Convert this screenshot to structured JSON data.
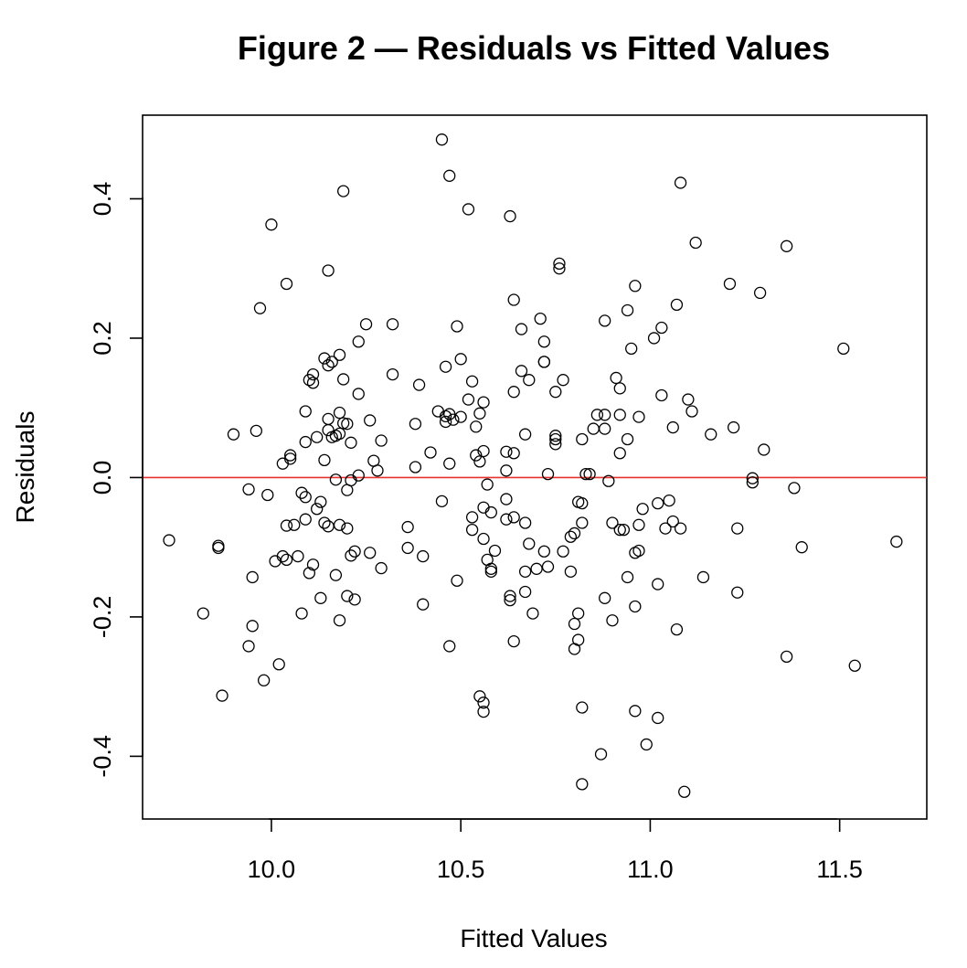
{
  "chart_data": {
    "type": "scatter",
    "title": "Figure 2 — Residuals vs Fitted Values",
    "xlabel": "Fitted Values",
    "ylabel": "Residuals",
    "xlim": [
      9.66,
      11.73
    ],
    "ylim": [
      -0.49,
      0.52
    ],
    "x_ticks": [
      10.0,
      10.5,
      11.0,
      11.5
    ],
    "x_tick_labels": [
      "10.0",
      "10.5",
      "11.0",
      "11.5"
    ],
    "y_ticks": [
      -0.4,
      -0.2,
      0.0,
      0.2,
      0.4
    ],
    "y_tick_labels": [
      "-0.4",
      "-0.2",
      "0.0",
      "0.2",
      "0.4"
    ],
    "grid": false,
    "legend": "none",
    "reference_line": {
      "y": 0.0,
      "color": "#e8312a"
    },
    "point_style": {
      "shape": "open-circle",
      "color": "#000000"
    },
    "points": [
      {
        "x": 9.73,
        "y": -0.09
      },
      {
        "x": 9.82,
        "y": -0.195
      },
      {
        "x": 9.86,
        "y": -0.098
      },
      {
        "x": 9.86,
        "y": -0.101
      },
      {
        "x": 9.87,
        "y": -0.313
      },
      {
        "x": 9.9,
        "y": 0.062
      },
      {
        "x": 9.94,
        "y": -0.017
      },
      {
        "x": 9.94,
        "y": -0.242
      },
      {
        "x": 9.95,
        "y": -0.143
      },
      {
        "x": 9.95,
        "y": -0.213
      },
      {
        "x": 9.96,
        "y": 0.067
      },
      {
        "x": 9.97,
        "y": 0.243
      },
      {
        "x": 9.98,
        "y": -0.291
      },
      {
        "x": 9.99,
        "y": -0.025
      },
      {
        "x": 10.0,
        "y": 0.363
      },
      {
        "x": 10.01,
        "y": -0.12
      },
      {
        "x": 10.02,
        "y": -0.268
      },
      {
        "x": 10.03,
        "y": 0.02
      },
      {
        "x": 10.03,
        "y": -0.113
      },
      {
        "x": 10.04,
        "y": 0.278
      },
      {
        "x": 10.04,
        "y": -0.069
      },
      {
        "x": 10.04,
        "y": -0.118
      },
      {
        "x": 10.05,
        "y": 0.032
      },
      {
        "x": 10.05,
        "y": 0.027
      },
      {
        "x": 10.06,
        "y": -0.068
      },
      {
        "x": 10.07,
        "y": -0.113
      },
      {
        "x": 10.08,
        "y": -0.022
      },
      {
        "x": 10.08,
        "y": -0.195
      },
      {
        "x": 10.09,
        "y": -0.028
      },
      {
        "x": 10.09,
        "y": 0.051
      },
      {
        "x": 10.09,
        "y": 0.095
      },
      {
        "x": 10.09,
        "y": -0.06
      },
      {
        "x": 10.1,
        "y": 0.14
      },
      {
        "x": 10.1,
        "y": -0.137
      },
      {
        "x": 10.11,
        "y": 0.148
      },
      {
        "x": 10.11,
        "y": 0.136
      },
      {
        "x": 10.11,
        "y": -0.125
      },
      {
        "x": 10.12,
        "y": 0.058
      },
      {
        "x": 10.12,
        "y": -0.045
      },
      {
        "x": 10.13,
        "y": -0.035
      },
      {
        "x": 10.13,
        "y": -0.173
      },
      {
        "x": 10.14,
        "y": 0.025
      },
      {
        "x": 10.14,
        "y": -0.065
      },
      {
        "x": 10.14,
        "y": 0.171
      },
      {
        "x": 10.15,
        "y": 0.161
      },
      {
        "x": 10.15,
        "y": 0.297
      },
      {
        "x": 10.15,
        "y": -0.07
      },
      {
        "x": 10.15,
        "y": 0.084
      },
      {
        "x": 10.15,
        "y": 0.068
      },
      {
        "x": 10.16,
        "y": 0.058
      },
      {
        "x": 10.16,
        "y": 0.166
      },
      {
        "x": 10.17,
        "y": 0.06
      },
      {
        "x": 10.17,
        "y": -0.003
      },
      {
        "x": 10.17,
        "y": -0.14
      },
      {
        "x": 10.18,
        "y": 0.093
      },
      {
        "x": 10.18,
        "y": 0.063
      },
      {
        "x": 10.18,
        "y": 0.176
      },
      {
        "x": 10.18,
        "y": -0.205
      },
      {
        "x": 10.18,
        "y": -0.068
      },
      {
        "x": 10.19,
        "y": 0.411
      },
      {
        "x": 10.19,
        "y": 0.141
      },
      {
        "x": 10.19,
        "y": 0.078
      },
      {
        "x": 10.2,
        "y": -0.018
      },
      {
        "x": 10.2,
        "y": -0.17
      },
      {
        "x": 10.2,
        "y": 0.077
      },
      {
        "x": 10.2,
        "y": -0.073
      },
      {
        "x": 10.21,
        "y": 0.05
      },
      {
        "x": 10.21,
        "y": -0.112
      },
      {
        "x": 10.21,
        "y": -0.004
      },
      {
        "x": 10.22,
        "y": -0.106
      },
      {
        "x": 10.22,
        "y": -0.175
      },
      {
        "x": 10.23,
        "y": 0.195
      },
      {
        "x": 10.23,
        "y": 0.003
      },
      {
        "x": 10.23,
        "y": 0.12
      },
      {
        "x": 10.25,
        "y": 0.22
      },
      {
        "x": 10.26,
        "y": 0.082
      },
      {
        "x": 10.26,
        "y": -0.108
      },
      {
        "x": 10.27,
        "y": 0.024
      },
      {
        "x": 10.28,
        "y": 0.01
      },
      {
        "x": 10.29,
        "y": 0.053
      },
      {
        "x": 10.29,
        "y": -0.13
      },
      {
        "x": 10.32,
        "y": 0.148
      },
      {
        "x": 10.32,
        "y": 0.22
      },
      {
        "x": 10.36,
        "y": -0.101
      },
      {
        "x": 10.36,
        "y": -0.071
      },
      {
        "x": 10.38,
        "y": 0.015
      },
      {
        "x": 10.38,
        "y": 0.077
      },
      {
        "x": 10.39,
        "y": 0.133
      },
      {
        "x": 10.4,
        "y": -0.113
      },
      {
        "x": 10.4,
        "y": -0.182
      },
      {
        "x": 10.42,
        "y": 0.036
      },
      {
        "x": 10.44,
        "y": 0.095
      },
      {
        "x": 10.45,
        "y": 0.485
      },
      {
        "x": 10.45,
        "y": -0.034
      },
      {
        "x": 10.46,
        "y": 0.088
      },
      {
        "x": 10.46,
        "y": 0.08
      },
      {
        "x": 10.46,
        "y": 0.159
      },
      {
        "x": 10.47,
        "y": 0.433
      },
      {
        "x": 10.47,
        "y": 0.091
      },
      {
        "x": 10.47,
        "y": -0.242
      },
      {
        "x": 10.47,
        "y": 0.02
      },
      {
        "x": 10.48,
        "y": 0.083
      },
      {
        "x": 10.49,
        "y": -0.148
      },
      {
        "x": 10.49,
        "y": 0.217
      },
      {
        "x": 10.5,
        "y": 0.087
      },
      {
        "x": 10.5,
        "y": 0.17
      },
      {
        "x": 10.52,
        "y": 0.385
      },
      {
        "x": 10.52,
        "y": 0.112
      },
      {
        "x": 10.53,
        "y": 0.138
      },
      {
        "x": 10.53,
        "y": -0.057
      },
      {
        "x": 10.53,
        "y": -0.075
      },
      {
        "x": 10.54,
        "y": 0.073
      },
      {
        "x": 10.54,
        "y": 0.032
      },
      {
        "x": 10.55,
        "y": 0.092
      },
      {
        "x": 10.55,
        "y": 0.023
      },
      {
        "x": 10.55,
        "y": -0.314
      },
      {
        "x": 10.56,
        "y": 0.108
      },
      {
        "x": 10.56,
        "y": -0.043
      },
      {
        "x": 10.56,
        "y": -0.323
      },
      {
        "x": 10.56,
        "y": -0.336
      },
      {
        "x": 10.56,
        "y": -0.088
      },
      {
        "x": 10.56,
        "y": 0.038
      },
      {
        "x": 10.57,
        "y": -0.118
      },
      {
        "x": 10.57,
        "y": -0.01
      },
      {
        "x": 10.58,
        "y": -0.131
      },
      {
        "x": 10.58,
        "y": -0.135
      },
      {
        "x": 10.58,
        "y": -0.05
      },
      {
        "x": 10.59,
        "y": -0.105
      },
      {
        "x": 10.62,
        "y": -0.06
      },
      {
        "x": 10.62,
        "y": -0.031
      },
      {
        "x": 10.62,
        "y": 0.037
      },
      {
        "x": 10.62,
        "y": 0.01
      },
      {
        "x": 10.63,
        "y": -0.17
      },
      {
        "x": 10.63,
        "y": 0.375
      },
      {
        "x": 10.63,
        "y": -0.176
      },
      {
        "x": 10.64,
        "y": 0.123
      },
      {
        "x": 10.64,
        "y": -0.235
      },
      {
        "x": 10.64,
        "y": 0.255
      },
      {
        "x": 10.64,
        "y": 0.035
      },
      {
        "x": 10.64,
        "y": -0.057
      },
      {
        "x": 10.66,
        "y": 0.213
      },
      {
        "x": 10.66,
        "y": 0.153
      },
      {
        "x": 10.67,
        "y": 0.062
      },
      {
        "x": 10.67,
        "y": -0.065
      },
      {
        "x": 10.67,
        "y": -0.135
      },
      {
        "x": 10.67,
        "y": -0.164
      },
      {
        "x": 10.68,
        "y": -0.095
      },
      {
        "x": 10.68,
        "y": 0.14
      },
      {
        "x": 10.69,
        "y": -0.195
      },
      {
        "x": 10.7,
        "y": -0.131
      },
      {
        "x": 10.71,
        "y": 0.228
      },
      {
        "x": 10.72,
        "y": 0.195
      },
      {
        "x": 10.72,
        "y": 0.166
      },
      {
        "x": 10.72,
        "y": 0.166
      },
      {
        "x": 10.72,
        "y": -0.106
      },
      {
        "x": 10.73,
        "y": 0.005
      },
      {
        "x": 10.73,
        "y": -0.128
      },
      {
        "x": 10.75,
        "y": 0.06
      },
      {
        "x": 10.75,
        "y": 0.048
      },
      {
        "x": 10.75,
        "y": 0.055
      },
      {
        "x": 10.75,
        "y": 0.123
      },
      {
        "x": 10.76,
        "y": 0.3
      },
      {
        "x": 10.76,
        "y": 0.307
      },
      {
        "x": 10.77,
        "y": 0.14
      },
      {
        "x": 10.77,
        "y": -0.106
      },
      {
        "x": 10.79,
        "y": -0.135
      },
      {
        "x": 10.79,
        "y": -0.085
      },
      {
        "x": 10.8,
        "y": -0.08
      },
      {
        "x": 10.8,
        "y": -0.21
      },
      {
        "x": 10.8,
        "y": -0.246
      },
      {
        "x": 10.81,
        "y": -0.035
      },
      {
        "x": 10.81,
        "y": -0.195
      },
      {
        "x": 10.81,
        "y": -0.233
      },
      {
        "x": 10.82,
        "y": 0.055
      },
      {
        "x": 10.82,
        "y": -0.037
      },
      {
        "x": 10.82,
        "y": -0.33
      },
      {
        "x": 10.82,
        "y": -0.44
      },
      {
        "x": 10.82,
        "y": -0.065
      },
      {
        "x": 10.83,
        "y": 0.005
      },
      {
        "x": 10.84,
        "y": 0.005
      },
      {
        "x": 10.85,
        "y": 0.07
      },
      {
        "x": 10.86,
        "y": 0.09
      },
      {
        "x": 10.87,
        "y": -0.397
      },
      {
        "x": 10.88,
        "y": 0.225
      },
      {
        "x": 10.88,
        "y": 0.07
      },
      {
        "x": 10.88,
        "y": 0.09
      },
      {
        "x": 10.88,
        "y": -0.173
      },
      {
        "x": 10.89,
        "y": -0.005
      },
      {
        "x": 10.9,
        "y": -0.065
      },
      {
        "x": 10.9,
        "y": -0.205
      },
      {
        "x": 10.91,
        "y": 0.143
      },
      {
        "x": 10.92,
        "y": 0.035
      },
      {
        "x": 10.92,
        "y": 0.09
      },
      {
        "x": 10.92,
        "y": 0.128
      },
      {
        "x": 10.92,
        "y": -0.075
      },
      {
        "x": 10.93,
        "y": -0.075
      },
      {
        "x": 10.94,
        "y": 0.055
      },
      {
        "x": 10.94,
        "y": 0.24
      },
      {
        "x": 10.94,
        "y": -0.143
      },
      {
        "x": 10.95,
        "y": 0.185
      },
      {
        "x": 10.96,
        "y": 0.275
      },
      {
        "x": 10.96,
        "y": -0.185
      },
      {
        "x": 10.96,
        "y": -0.335
      },
      {
        "x": 10.96,
        "y": -0.108
      },
      {
        "x": 10.97,
        "y": 0.087
      },
      {
        "x": 10.97,
        "y": -0.068
      },
      {
        "x": 10.97,
        "y": -0.105
      },
      {
        "x": 10.98,
        "y": -0.045
      },
      {
        "x": 10.99,
        "y": -0.383
      },
      {
        "x": 11.01,
        "y": 0.2
      },
      {
        "x": 11.02,
        "y": -0.037
      },
      {
        "x": 11.02,
        "y": -0.153
      },
      {
        "x": 11.02,
        "y": -0.345
      },
      {
        "x": 11.03,
        "y": 0.215
      },
      {
        "x": 11.03,
        "y": 0.118
      },
      {
        "x": 11.04,
        "y": -0.073
      },
      {
        "x": 11.05,
        "y": -0.033
      },
      {
        "x": 11.06,
        "y": 0.072
      },
      {
        "x": 11.06,
        "y": -0.063
      },
      {
        "x": 11.07,
        "y": -0.218
      },
      {
        "x": 11.07,
        "y": 0.248
      },
      {
        "x": 11.08,
        "y": 0.423
      },
      {
        "x": 11.08,
        "y": -0.073
      },
      {
        "x": 11.09,
        "y": -0.451
      },
      {
        "x": 11.1,
        "y": 0.112
      },
      {
        "x": 11.11,
        "y": 0.095
      },
      {
        "x": 11.12,
        "y": 0.337
      },
      {
        "x": 11.14,
        "y": -0.143
      },
      {
        "x": 11.16,
        "y": 0.062
      },
      {
        "x": 11.21,
        "y": 0.278
      },
      {
        "x": 11.22,
        "y": 0.072
      },
      {
        "x": 11.23,
        "y": -0.165
      },
      {
        "x": 11.23,
        "y": -0.073
      },
      {
        "x": 11.27,
        "y": -0.007
      },
      {
        "x": 11.27,
        "y": -0.001
      },
      {
        "x": 11.29,
        "y": 0.265
      },
      {
        "x": 11.3,
        "y": 0.04
      },
      {
        "x": 11.36,
        "y": 0.332
      },
      {
        "x": 11.36,
        "y": -0.257
      },
      {
        "x": 11.38,
        "y": -0.015
      },
      {
        "x": 11.4,
        "y": -0.1
      },
      {
        "x": 11.51,
        "y": 0.185
      },
      {
        "x": 11.54,
        "y": -0.27
      },
      {
        "x": 11.65,
        "y": -0.092
      }
    ]
  }
}
